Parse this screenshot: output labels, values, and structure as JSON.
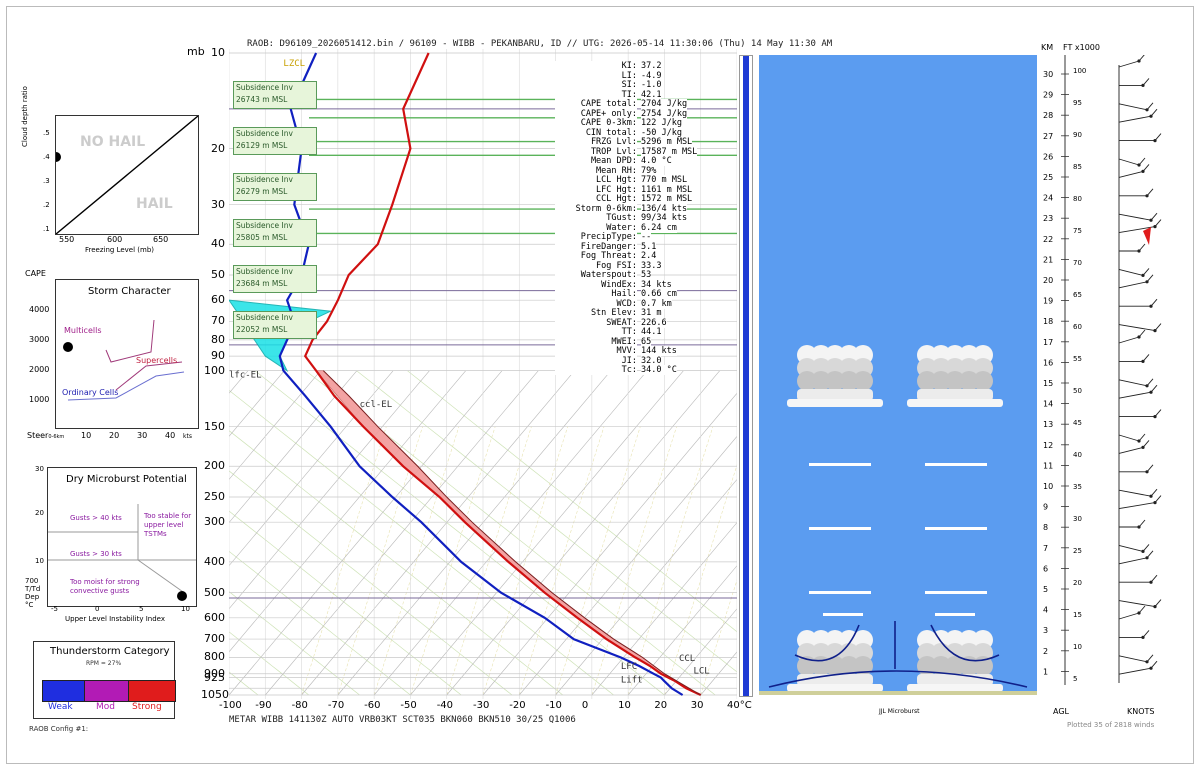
{
  "header": "RAOB:  D96109_2026051412.bin / 96109 - WIBB - PEKANBARU, ID // UTG: 2026-05-14 11:30:06 (Thu) 14 May 11:30 AM",
  "footer": "METAR WIBB 141130Z AUTO VRB03KT SCT035 BKN060 BKN510 30/25 Q1006",
  "config_label": "RAOB Config #1:",
  "axis_mb_label": "mb",
  "hail_panel": {
    "no_hail": "NO HAIL",
    "hail": "HAIL",
    "ylabel": "Cloud depth ratio",
    "xlabel": "Freezing Level (mb)",
    "xticks": [
      "550",
      "600",
      "650"
    ],
    "yticks": [
      ".5",
      ".4",
      ".3",
      ".2",
      ".1"
    ],
    "point_color": "#000000"
  },
  "storm_panel": {
    "title": "Storm Character",
    "cape_label": "CAPE",
    "yticks": [
      "4000",
      "3000",
      "2000",
      "1000"
    ],
    "xticks": [
      "10",
      "20",
      "30",
      "40"
    ],
    "steer_label": "Steer",
    "steer_sub": "0-6km",
    "xunit": "kts",
    "multicells": "Multicells",
    "supercells": "Supercells",
    "ordinary": "Ordinary Cells"
  },
  "micro_panel": {
    "title": "Dry Microburst Potential",
    "g40": "Gusts > 40 kts",
    "g30": "Gusts > 30 kts",
    "toomoist": "Too moist for strong convective gusts",
    "toostable": "Too stable for upper level TSTMs",
    "yticks": [
      "30",
      "20",
      "10"
    ],
    "left_label_1": "700",
    "left_label_2": "T/Td",
    "left_label_3": "Dep",
    "left_label_4": "°C",
    "xticks": [
      "-5",
      "0",
      "5",
      "10"
    ],
    "xlabel": "Upper Level Instability Index"
  },
  "ts_panel": {
    "title": "Thunderstorm Category",
    "sub": "RPM = 27%",
    "weak": "Weak",
    "mod": "Mod",
    "strong": "Strong",
    "colors": {
      "weak": "#1f2ee0",
      "mod": "#b21bb5",
      "strong": "#e01c1c"
    }
  },
  "chart_data": {
    "type": "line",
    "title": "",
    "xlabel": "°C",
    "xlim": [
      -100,
      40
    ],
    "xticks": [
      "-100",
      "-90",
      "-80",
      "-70",
      "-60",
      "-50",
      "-40",
      "-30",
      "-20",
      "-10",
      "0",
      "10",
      "20",
      "30",
      "40°C"
    ],
    "pressure_ticks": [
      "10",
      "20",
      "30",
      "40",
      "50",
      "60",
      "70",
      "80",
      "90",
      "100",
      "150",
      "200",
      "250",
      "300",
      "400",
      "500",
      "600",
      "700",
      "800",
      "900",
      "925",
      "1050"
    ],
    "series": [
      {
        "color": "#d01010",
        "pressure": [
          1050,
          1000,
          950,
          925,
          900,
          850,
          800,
          700,
          600,
          500,
          400,
          300,
          250,
          200,
          150,
          120,
          100,
          90,
          80,
          70,
          60,
          50,
          40,
          30,
          20,
          15,
          10
        ],
        "temp": [
          30,
          26,
          23,
          21,
          19,
          16,
          12,
          4,
          -4,
          -13,
          -23,
          -35,
          -42,
          -52,
          -63,
          -71,
          -76,
          -79,
          -77,
          -73,
          -70,
          -67,
          -59,
          -55,
          -50,
          -52,
          -45
        ]
      },
      {
        "color": "#1020c0",
        "pressure": [
          1050,
          1000,
          950,
          925,
          900,
          850,
          800,
          700,
          600,
          500,
          400,
          300,
          250,
          200,
          150,
          120,
          100,
          90,
          80,
          70,
          60,
          50,
          40,
          30,
          20,
          15,
          10
        ],
        "temp": [
          25,
          22,
          20,
          19,
          17,
          13,
          8,
          -5,
          -13,
          -25,
          -36,
          -47,
          -55,
          -64,
          -72,
          -79,
          -85,
          -86,
          -84,
          -82,
          -84,
          -80,
          -78,
          -82,
          -80,
          -83,
          -76
        ]
      }
    ],
    "cape_color": "#f29a9a",
    "cin_color": "#19e1e6",
    "labels": {
      "lfc_el": "lfc-EL",
      "ccl_el": "ccl-EL",
      "ccl": "CCL",
      "lfc": "LFC",
      "lcl": "LCL",
      "lift": "Lift",
      "lzc": "LZCL"
    }
  },
  "subsidence": [
    {
      "name": "Subsidence Inv",
      "value": "26743 m MSL"
    },
    {
      "name": "Subsidence Inv",
      "value": "26129 m MSL"
    },
    {
      "name": "Subsidence Inv",
      "value": "26279 m MSL"
    },
    {
      "name": "Subsidence Inv",
      "value": "25805 m MSL"
    },
    {
      "name": "Subsidence Inv",
      "value": "23684 m MSL"
    },
    {
      "name": "Subsidence Inv",
      "value": "22052 m MSL"
    }
  ],
  "indices": [
    {
      "k": "KI:",
      "v": "37.2"
    },
    {
      "k": "LI:",
      "v": "-4.9"
    },
    {
      "k": "SI:",
      "v": "-1.0"
    },
    {
      "k": "TI:",
      "v": "42.1"
    },
    {
      "k": "CAPE total:",
      "v": "2704 J/kg"
    },
    {
      "k": "CAPE+ only:",
      "v": "2754 J/kg"
    },
    {
      "k": "CAPE 0-3km:",
      "v": "122 J/kg"
    },
    {
      "k": "CIN total:",
      "v": "-50 J/kg"
    },
    {
      "k": "FRZG Lvl:",
      "v": "5296 m MSL"
    },
    {
      "k": "TROP Lvl:",
      "v": "17587 m MSL"
    },
    {
      "k": "Mean DPD:",
      "v": "4.0 °C"
    },
    {
      "k": "Mean RH:",
      "v": "79%"
    },
    {
      "k": "LCL Hgt:",
      "v": "770 m MSL"
    },
    {
      "k": "LFC Hgt:",
      "v": "1161 m MSL"
    },
    {
      "k": "CCL Hgt:",
      "v": "1572 m MSL"
    },
    {
      "k": "Storm 0-6km:",
      "v": "136/4 kts"
    },
    {
      "k": "TGust:",
      "v": "99/34 kts"
    },
    {
      "k": "Water:",
      "v": "6.24 cm"
    },
    {
      "k": "PrecipType:",
      "v": "--"
    },
    {
      "k": "FireDanger:",
      "v": "5.1"
    },
    {
      "k": "Fog Threat:",
      "v": "2.4"
    },
    {
      "k": "Fog FSI:",
      "v": "33.3"
    },
    {
      "k": "Waterspout:",
      "v": "53"
    },
    {
      "k": "WindEx:",
      "v": "34 kts"
    },
    {
      "k": "Hail:",
      "v": "0.66 cm"
    },
    {
      "k": "WCD:",
      "v": "0.7 km"
    },
    {
      "k": "Stn Elev:",
      "v": "31 m"
    },
    {
      "k": "SWEAT:",
      "v": "226.6"
    },
    {
      "k": "TT:",
      "v": "44.1"
    },
    {
      "k": "MWEI:",
      "v": "65"
    },
    {
      "k": "MVV:",
      "v": "144 kts"
    },
    {
      "k": "JI:",
      "v": "32.0"
    },
    {
      "k": "Tc:",
      "v": "34.0 °C"
    }
  ],
  "cloud_panel": {
    "bg": "#5b9cf0",
    "label": "JJL Microburst"
  },
  "wind_panel": {
    "km_label": "KM",
    "ft_label": "FT x1000",
    "agl_label": "AGL",
    "knots_label": "KNOTS",
    "plotted": "Plotted 35 of 2818 winds",
    "km_ticks": [
      "30",
      "29",
      "28",
      "27",
      "26",
      "25",
      "24",
      "23",
      "22",
      "21",
      "20",
      "19",
      "18",
      "17",
      "16",
      "15",
      "14",
      "13",
      "12",
      "11",
      "10",
      "9",
      "8",
      "7",
      "6",
      "5",
      "4",
      "3",
      "2",
      "1"
    ],
    "ft_ticks": [
      "100",
      "95",
      "90",
      "85",
      "80",
      "75",
      "70",
      "65",
      "60",
      "55",
      "50",
      "45",
      "40",
      "35",
      "30",
      "25",
      "20",
      "15",
      "10",
      "5"
    ]
  }
}
